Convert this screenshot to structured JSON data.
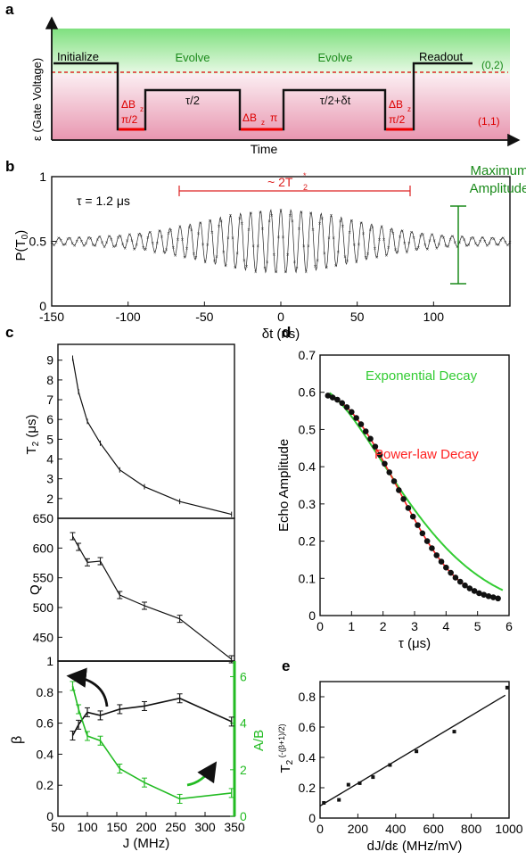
{
  "panels": {
    "a": {
      "label": "a",
      "ylabel": "ε (Gate Voltage)",
      "xlabel": "Time",
      "regions": [
        "(0,2)",
        "(1,1)"
      ],
      "steps": [
        "Initialize",
        "Evolve",
        "Evolve",
        "Readout"
      ],
      "pulses": [
        "ΔB",
        "z",
        "π/2",
        "τ/2",
        "ΔB",
        "z",
        "π",
        "τ/2+δt",
        "ΔB",
        "z",
        "π/2"
      ]
    },
    "b": {
      "label": "b",
      "tau_label": "τ = 1.2 μs",
      "span_label": "~ 2T",
      "span_sub": "2",
      "span_sup": "*",
      "amp_label": [
        "Maximum",
        "Amplitude"
      ]
    },
    "c": {
      "label": "c"
    },
    "d": {
      "label": "d"
    },
    "e": {
      "label": "e"
    }
  },
  "chart_data": [
    {
      "id": "b",
      "type": "line",
      "title": "",
      "xlabel": "δt (ns)",
      "ylabel": "P(T0)",
      "xlim": [
        -150,
        150
      ],
      "ylim": [
        0,
        1
      ],
      "xticks": [
        -150,
        -100,
        -50,
        0,
        50,
        100
      ],
      "yticks": [
        0,
        0.5,
        1
      ],
      "yticklabels": [
        "0",
        "0.5",
        "1"
      ],
      "series": [
        {
          "center_ns": 0,
          "offset": 0.5,
          "max_amplitude": 0.245,
          "gaussian_sigma_ns": 50,
          "oscillation_period_ns": 6.6,
          "baseline_amplitude": 0.025
        }
      ]
    },
    {
      "id": "c-top",
      "type": "line",
      "xlabel": "",
      "ylabel": "T2 (μs)",
      "ylim": [
        1.0,
        9.8
      ],
      "yticks": [
        2,
        3,
        4,
        5,
        6,
        7,
        8,
        9
      ],
      "x": [
        75,
        85,
        100,
        122,
        155,
        197,
        257,
        345
      ],
      "series": [
        {
          "values": [
            9.1,
            7.4,
            5.9,
            4.8,
            3.45,
            2.6,
            1.85,
            1.2
          ]
        }
      ]
    },
    {
      "id": "c-mid",
      "type": "line",
      "xlabel": "",
      "ylabel": "Q",
      "ylim": [
        410,
        650
      ],
      "yticks": [
        450,
        500,
        550,
        600,
        650
      ],
      "x": [
        75,
        85,
        100,
        122,
        155,
        197,
        257,
        345
      ],
      "series": [
        {
          "values": [
            620,
            602,
            576,
            578,
            521,
            503,
            481,
            413
          ]
        }
      ]
    },
    {
      "id": "c-bot",
      "type": "line",
      "xlabel": "J (MHz)",
      "ylabel": "β",
      "ylabel_right": "A/B",
      "xlim": [
        50,
        350
      ],
      "ylim": [
        0,
        1
      ],
      "xticks": [
        50,
        100,
        150,
        200,
        250,
        300,
        350
      ],
      "yticks": [
        0,
        0.2,
        0.4,
        0.6,
        0.8
      ],
      "yticks_right": [
        0,
        2,
        4,
        6
      ],
      "ylim_right": [
        0,
        6.67
      ],
      "x": [
        75,
        85,
        100,
        122,
        155,
        197,
        257,
        345
      ],
      "series": [
        {
          "axis": "left",
          "color": "#111111",
          "values": [
            0.52,
            0.59,
            0.67,
            0.65,
            0.69,
            0.71,
            0.76,
            0.61
          ]
        },
        {
          "axis": "right",
          "color": "#22bb22",
          "values": [
            5.6,
            4.6,
            3.45,
            3.25,
            2.05,
            1.45,
            0.75,
            1.0
          ]
        }
      ]
    },
    {
      "id": "d",
      "type": "scatter",
      "xlabel": "τ (μs)",
      "ylabel": "Echo Amplitude",
      "xlim": [
        0,
        6
      ],
      "ylim": [
        0,
        0.7
      ],
      "xticks": [
        0,
        1,
        2,
        3,
        4,
        5,
        6
      ],
      "yticks": [
        0,
        0.1,
        0.2,
        0.3,
        0.4,
        0.5,
        0.6,
        0.7
      ],
      "x": [
        0.25,
        0.4,
        0.55,
        0.7,
        0.85,
        1.0,
        1.15,
        1.3,
        1.45,
        1.6,
        1.75,
        1.9,
        2.05,
        2.2,
        2.35,
        2.5,
        2.65,
        2.8,
        2.95,
        3.1,
        3.25,
        3.4,
        3.55,
        3.7,
        3.85,
        4.0,
        4.15,
        4.3,
        4.45,
        4.6,
        4.75,
        4.9,
        5.05,
        5.2,
        5.35,
        5.5,
        5.65
      ],
      "series": [
        {
          "name": "data",
          "values": [
            0.591,
            0.586,
            0.58,
            0.571,
            0.56,
            0.547,
            0.531,
            0.514,
            0.495,
            0.475,
            0.454,
            0.432,
            0.408,
            0.385,
            0.361,
            0.337,
            0.313,
            0.289,
            0.266,
            0.243,
            0.221,
            0.2,
            0.181,
            0.162,
            0.145,
            0.129,
            0.115,
            0.102,
            0.091,
            0.081,
            0.073,
            0.066,
            0.06,
            0.056,
            0.052,
            0.049,
            0.046
          ]
        },
        {
          "name": "Power-law Decay",
          "fit": "power",
          "color": "#ff2222"
        },
        {
          "name": "Exponential Decay",
          "fit": "exp",
          "color": "#33cc33",
          "xrange": [
            0.3,
            5.8
          ],
          "formula_params": {
            "a": 0.61,
            "t0": 3.55,
            "p": 1.6
          }
        }
      ]
    },
    {
      "id": "e",
      "type": "scatter",
      "xlabel": "dJ/dε (MHz/mV)",
      "ylabel": "T2^(-(β+1)/2)",
      "xlim": [
        0,
        1000
      ],
      "ylim": [
        0,
        0.9
      ],
      "xticks": [
        0,
        200,
        400,
        600,
        800,
        1000
      ],
      "yticks": [
        0,
        0.2,
        0.4,
        0.6,
        0.8
      ],
      "x": [
        20,
        100,
        150,
        210,
        280,
        370,
        510,
        710,
        990
      ],
      "series": [
        {
          "name": "data",
          "values": [
            0.1,
            0.12,
            0.22,
            0.23,
            0.27,
            0.35,
            0.44,
            0.57,
            0.86
          ]
        },
        {
          "name": "fit",
          "line": [
            [
              0,
              0.08
            ],
            [
              980,
              0.81
            ]
          ]
        }
      ]
    }
  ]
}
